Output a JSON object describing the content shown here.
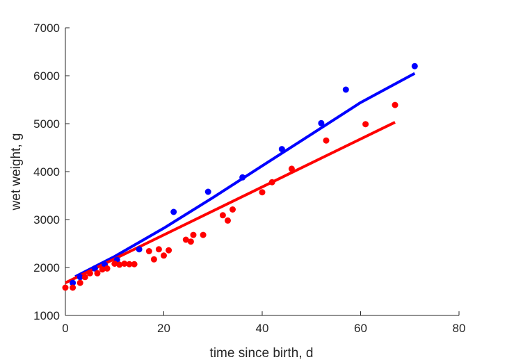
{
  "chart_data": {
    "type": "scatter",
    "xlabel": "time since birth, d",
    "ylabel": "wet weight, g",
    "xlim": [
      0,
      80
    ],
    "ylim": [
      1000,
      7000
    ],
    "xticks": [
      0,
      20,
      40,
      60,
      80
    ],
    "yticks": [
      1000,
      2000,
      3000,
      4000,
      5000,
      6000,
      7000
    ],
    "grid": false,
    "series": [
      {
        "color": "#0000ff",
        "points": [
          [
            1.5,
            1680
          ],
          [
            3,
            1800
          ],
          [
            6,
            1980
          ],
          [
            8,
            2060
          ],
          [
            10.5,
            2160
          ],
          [
            15,
            2380
          ],
          [
            22,
            3160
          ],
          [
            29,
            3580
          ],
          [
            36,
            3880
          ],
          [
            44,
            4470
          ],
          [
            52,
            5010
          ],
          [
            57,
            5710
          ],
          [
            71,
            6200
          ]
        ],
        "fit": [
          [
            2,
            1810
          ],
          [
            10,
            2230
          ],
          [
            20,
            2820
          ],
          [
            30,
            3460
          ],
          [
            40,
            4120
          ],
          [
            50,
            4780
          ],
          [
            60,
            5440
          ],
          [
            71,
            6050
          ]
        ]
      },
      {
        "color": "#ff0000",
        "points": [
          [
            0,
            1580
          ],
          [
            1.5,
            1580
          ],
          [
            3,
            1680
          ],
          [
            4,
            1800
          ],
          [
            5,
            1880
          ],
          [
            6.5,
            1880
          ],
          [
            7.5,
            1960
          ],
          [
            8.5,
            1980
          ],
          [
            10,
            2080
          ],
          [
            11,
            2060
          ],
          [
            12,
            2080
          ],
          [
            13,
            2070
          ],
          [
            14,
            2070
          ],
          [
            17,
            2340
          ],
          [
            18,
            2170
          ],
          [
            19,
            2380
          ],
          [
            20,
            2250
          ],
          [
            21,
            2360
          ],
          [
            24.5,
            2580
          ],
          [
            25.5,
            2540
          ],
          [
            26,
            2680
          ],
          [
            28,
            2680
          ],
          [
            32,
            3090
          ],
          [
            33,
            2980
          ],
          [
            34,
            3210
          ],
          [
            40,
            3570
          ],
          [
            42,
            3780
          ],
          [
            46,
            4060
          ],
          [
            53,
            4650
          ],
          [
            61,
            4990
          ],
          [
            67,
            5390
          ]
        ],
        "fit": [
          [
            0,
            1680
          ],
          [
            67,
            5030
          ]
        ]
      }
    ]
  }
}
